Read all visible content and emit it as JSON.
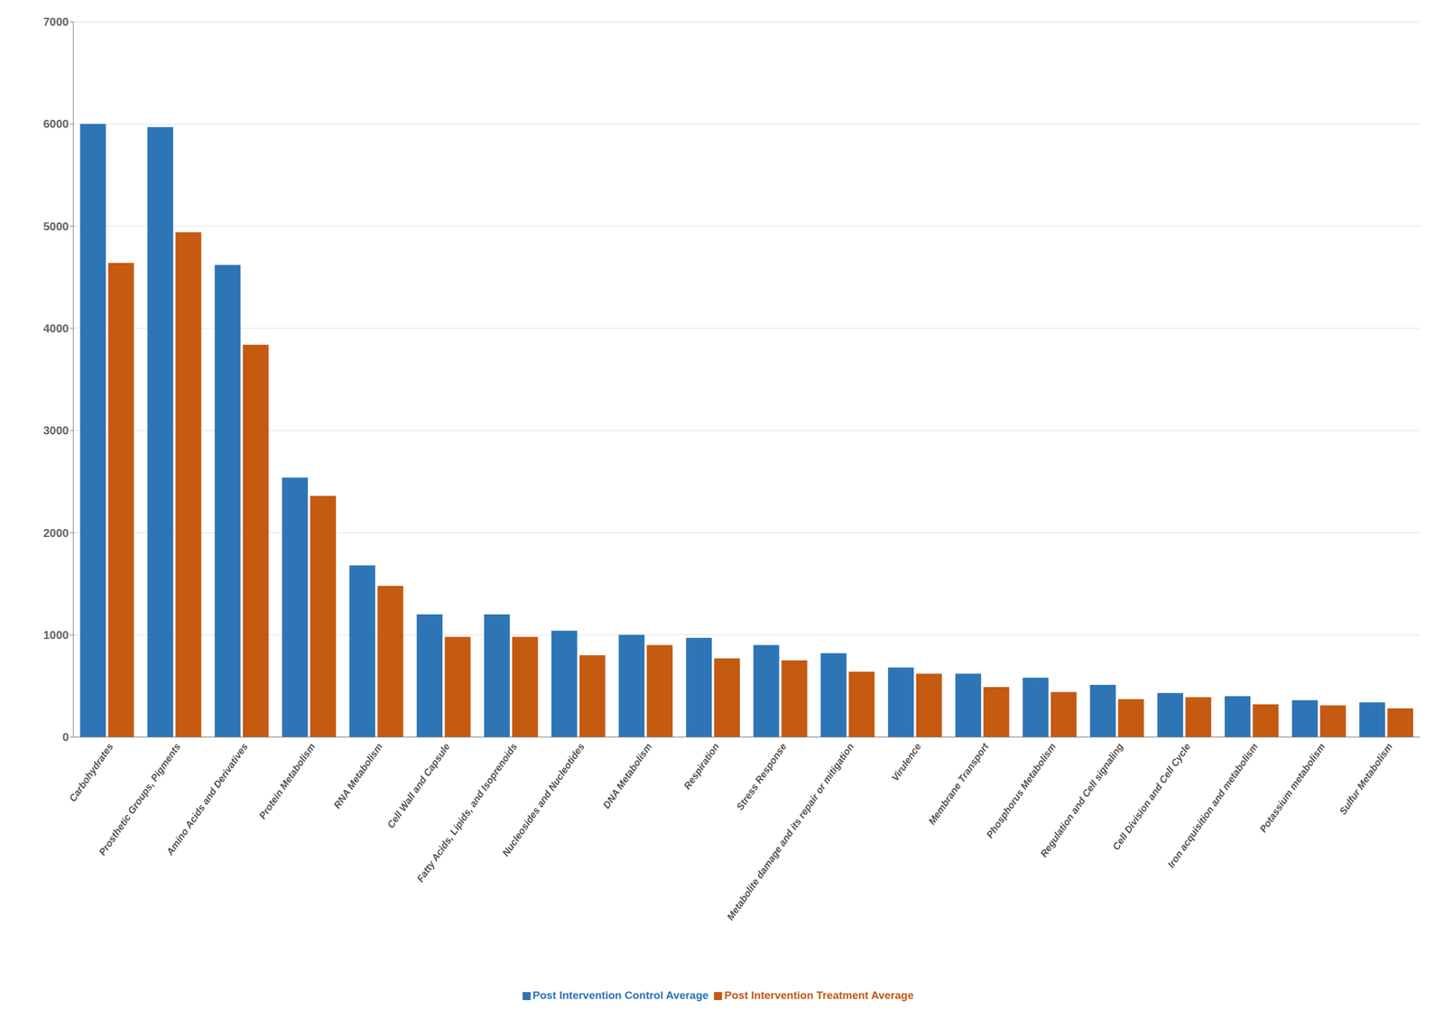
{
  "chart_data": {
    "type": "bar",
    "categories": [
      "Carbohydrates",
      "Prosthetic Groups, Pigments",
      "Amino Acids and Derivatives",
      "Protein Metabolism",
      "RNA Metabolism",
      "Cell Wall and Capsule",
      "Fatty Acids, Lipids, and Isoprenoids",
      "Nucleosides and Nucleotides",
      "DNA Metabolism",
      "Respiration",
      "Stress Response",
      "Metabolite damage and its repair or mitigation",
      "Virulence",
      "Membrane Transport",
      "Phosphorus Metabolism",
      "Regulation and Cell signaling",
      "Cell Division and Cell Cycle",
      "Iron acquisition and metabolism",
      "Potassium metabolism",
      "Sulfur Metabolism"
    ],
    "series": [
      {
        "name": "Post Intervention Control Average",
        "color": "#2E75B6",
        "values": [
          6000,
          5970,
          4620,
          2540,
          1680,
          1200,
          1200,
          1040,
          1000,
          970,
          900,
          820,
          680,
          620,
          580,
          510,
          430,
          400,
          360,
          340
        ]
      },
      {
        "name": "Post Intervention Treatment Average",
        "color": "#C55A11",
        "values": [
          4640,
          4940,
          3840,
          2360,
          1480,
          980,
          980,
          800,
          900,
          770,
          750,
          640,
          620,
          490,
          440,
          370,
          390,
          320,
          310,
          280
        ]
      }
    ],
    "ylim": [
      0,
      7000
    ],
    "yticks": [
      0,
      1000,
      2000,
      3000,
      4000,
      5000,
      6000,
      7000
    ],
    "grid": true,
    "legend": "bottom"
  }
}
